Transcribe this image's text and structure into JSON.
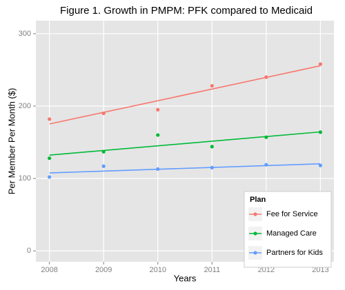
{
  "chart_data": {
    "type": "scatter",
    "title": "Figure 1. Growth in PMPM: PFK compared to Medicaid",
    "x_label": "Years",
    "y_label": "Per Member Per Month ($)",
    "x": [
      2008,
      2009,
      2010,
      2011,
      2012,
      2013
    ],
    "series": [
      {
        "name": "Fee for Service",
        "color": "#f8766d",
        "values": [
          182,
          190,
          195,
          228,
          240,
          258
        ]
      },
      {
        "name": "Managed Care",
        "color": "#00ba38",
        "values": [
          128,
          137,
          160,
          144,
          157,
          164
        ]
      },
      {
        "name": "Partners for Kids",
        "color": "#619cff",
        "values": [
          102,
          117,
          113,
          115,
          119,
          118
        ]
      }
    ],
    "trend": "linear",
    "xlim": [
      2007.75,
      2013.25
    ],
    "xticks": [
      2008,
      2009,
      2010,
      2011,
      2012,
      2013
    ],
    "ylim": [
      -15,
      318
    ],
    "yticks": [
      0,
      100,
      200,
      300
    ],
    "grid": true,
    "legend": {
      "title": "Plan",
      "position": "bottom-right"
    }
  }
}
